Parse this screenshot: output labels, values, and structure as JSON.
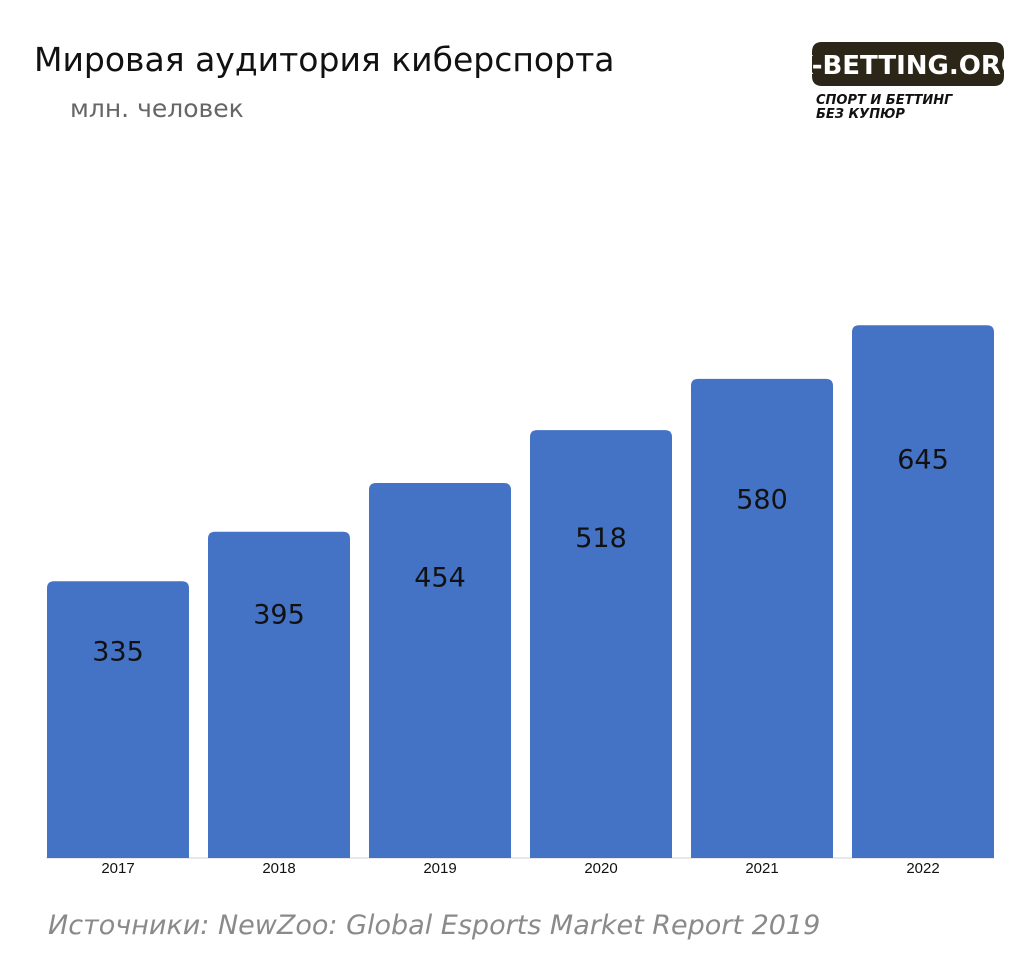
{
  "chart_data": {
    "type": "bar",
    "title": "Мировая аудитория киберспорта",
    "subtitle": "млн. человек",
    "categories": [
      "2017",
      "2018",
      "2019",
      "2020",
      "2021",
      "2022"
    ],
    "values": [
      335,
      395,
      454,
      518,
      580,
      645
    ],
    "data_labels": [
      "335",
      "395",
      "454",
      "518",
      "580",
      "645"
    ],
    "ylim": [
      0,
      800
    ],
    "grid": false,
    "legend": "none",
    "bar_color": "#4472c4",
    "label_color": "#111111"
  },
  "logo": {
    "brand": "X-BETTING.ORG",
    "tagline_line1": "СПОРТ И БЕТТИНГ",
    "tagline_line2": "БЕЗ КУПЮР",
    "badge_color": "#2b2618",
    "text_color": "#ffffff"
  },
  "source": {
    "label": "Источники",
    "separator": ": ",
    "text": "NewZoo: Global Esports Market Report 2019"
  }
}
